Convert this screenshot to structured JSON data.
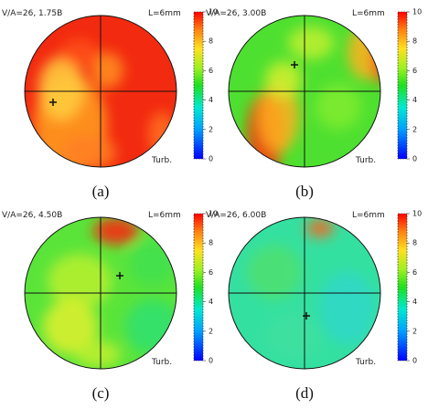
{
  "panels": [
    {
      "params": "V/A=26, 1.75B",
      "length": "L=6mm",
      "mode": "Turb.",
      "caption": "(a)"
    },
    {
      "params": "V/A=26, 3.00B",
      "length": "L=6mm",
      "mode": "Turb.",
      "caption": "(b)"
    },
    {
      "params": "V/A=26, 4.50B",
      "length": "L=6mm",
      "mode": "Turb.",
      "caption": "(c)"
    },
    {
      "params": "V/A=26, 6.00B",
      "length": "L=6mm",
      "mode": "Turb.",
      "caption": "(d)"
    }
  ],
  "colorbar": {
    "ticks": [
      0,
      2,
      4,
      6,
      8,
      10
    ]
  }
}
